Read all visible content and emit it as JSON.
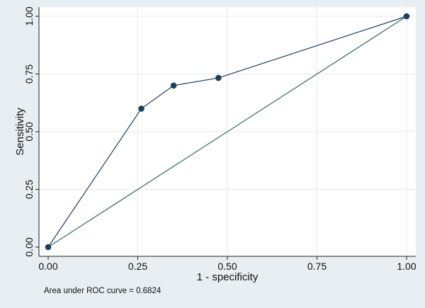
{
  "chart_data": {
    "type": "line",
    "xlabel": "1 - specificity",
    "ylabel": "Sensitivity",
    "xlim": [
      0,
      1
    ],
    "ylim": [
      0,
      1
    ],
    "x_ticks": [
      "0.00",
      "0.25",
      "0.50",
      "0.75",
      "1.00"
    ],
    "y_ticks": [
      "0.00",
      "0.25",
      "0.50",
      "0.75",
      "1.00"
    ],
    "grid": true,
    "note": "Area under ROC curve = 0.6824",
    "series": [
      {
        "x": [
          0.0,
          0.26,
          0.35,
          0.475,
          1.0
        ],
        "y": [
          0.0,
          0.6,
          0.7,
          0.733,
          1.0
        ],
        "color": "#1f3d5c",
        "markers": true
      },
      {
        "x": [
          0.0,
          1.0
        ],
        "y": [
          0.0,
          1.0
        ],
        "color": "#2f6b57",
        "markers": false
      }
    ]
  }
}
